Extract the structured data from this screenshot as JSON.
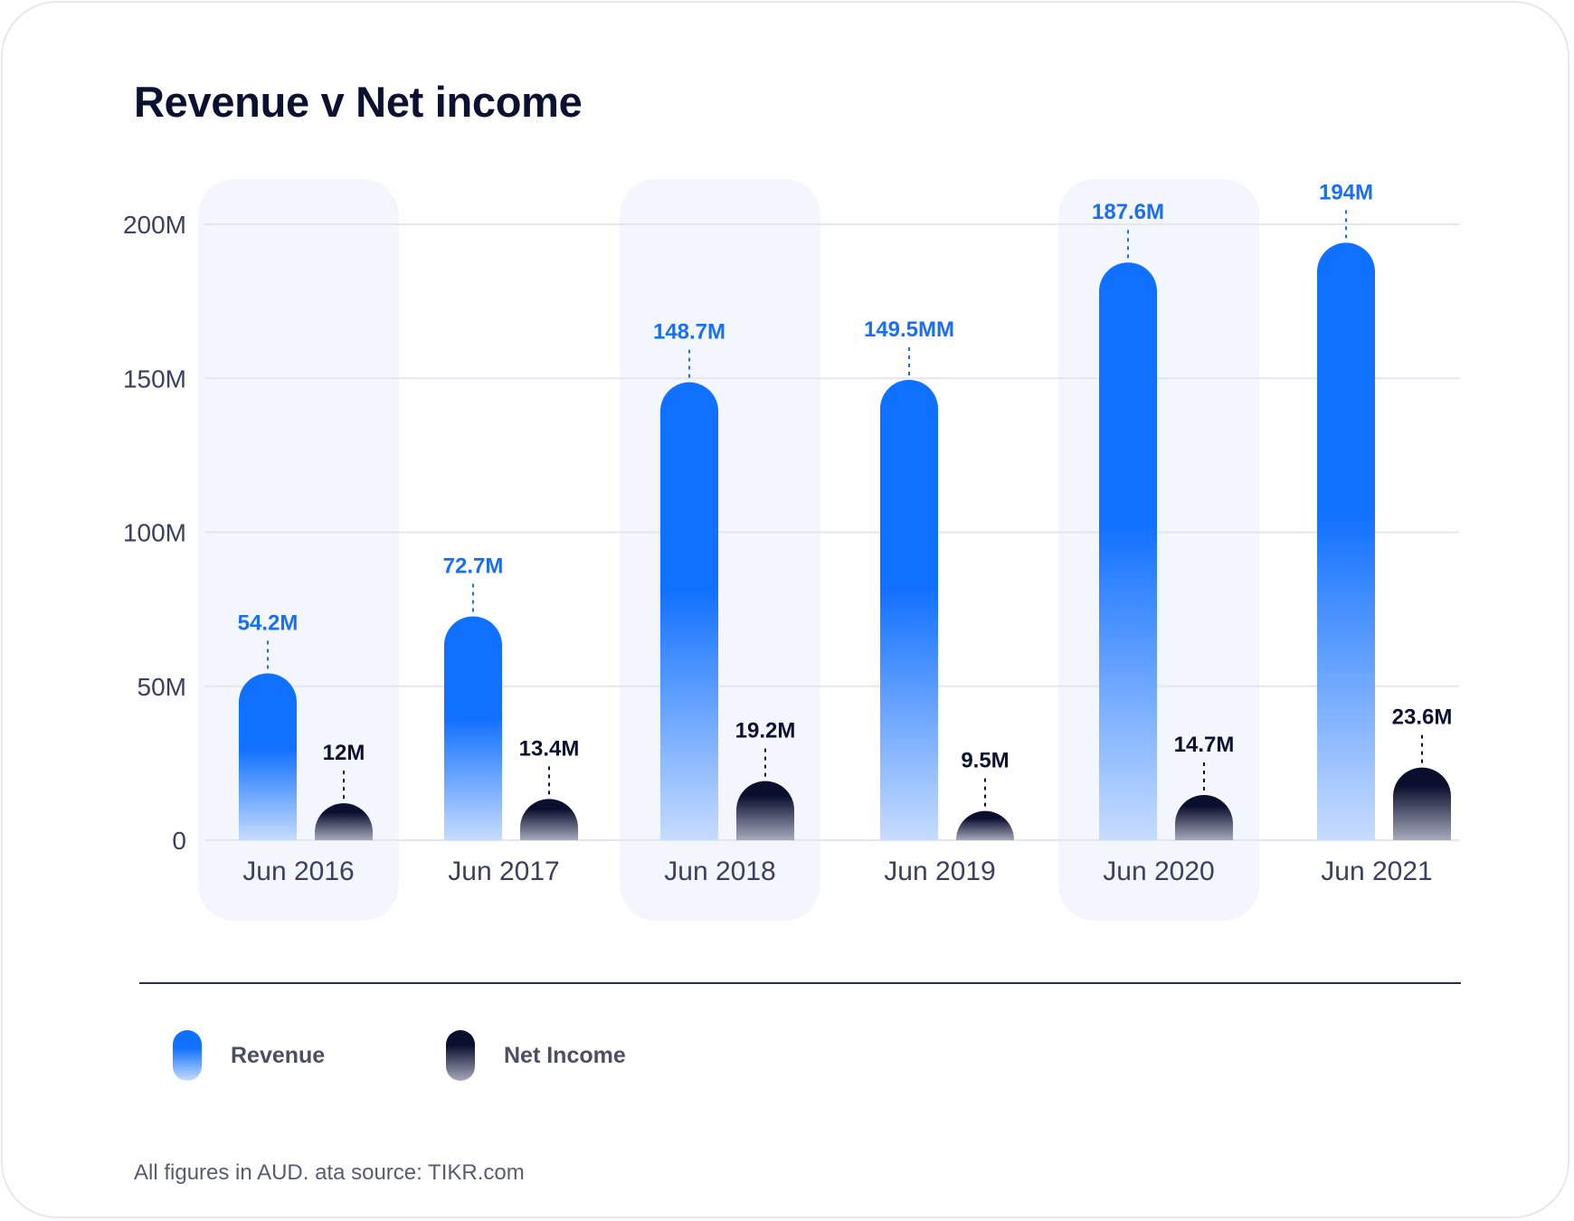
{
  "title": "Revenue v Net income",
  "footnote": "All figures in AUD. ata source: TIKR.com",
  "colors": {
    "revenue_top": "#1070ff",
    "revenue_bottom": "#c7dcff",
    "net_income_top": "#0b0f2e",
    "net_income_bottom": "#a7aabd",
    "revenue_label": "#1a6ef0",
    "net_income_label": "#0b1130",
    "highlight_band": "#f3f7fd",
    "gridline": "#e4e6ec"
  },
  "legend": [
    {
      "label": "Revenue",
      "series": "revenue"
    },
    {
      "label": "Net Income",
      "series": "net_income"
    }
  ],
  "chart_data": {
    "type": "bar",
    "title": "Revenue v Net income",
    "xlabel": "",
    "ylabel": "",
    "ylim": [
      0,
      200
    ],
    "yticks": [
      0,
      50,
      100,
      150,
      200
    ],
    "ytick_labels": [
      "0",
      "50M",
      "100M",
      "150M",
      "200M"
    ],
    "grid": true,
    "legend_position": "bottom-left",
    "categories": [
      "Jun 2016",
      "Jun 2017",
      "Jun 2018",
      "Jun 2019",
      "Jun 2020",
      "Jun 2021"
    ],
    "highlighted_categories": [
      "Jun 2016",
      "Jun 2018",
      "Jun 2020"
    ],
    "series": [
      {
        "name": "Revenue",
        "key": "revenue",
        "values": [
          54.2,
          72.7,
          148.7,
          149.5,
          187.6,
          194
        ],
        "labels": [
          "54.2M",
          "72.7M",
          "148.7M",
          "149.5MM",
          "187.6M",
          "194M"
        ]
      },
      {
        "name": "Net Income",
        "key": "net_income",
        "values": [
          12,
          13.4,
          19.2,
          9.5,
          14.7,
          23.6
        ],
        "labels": [
          "12M",
          "13.4M",
          "19.2M",
          "9.5M",
          "14.7M",
          "23.6M"
        ]
      }
    ]
  }
}
